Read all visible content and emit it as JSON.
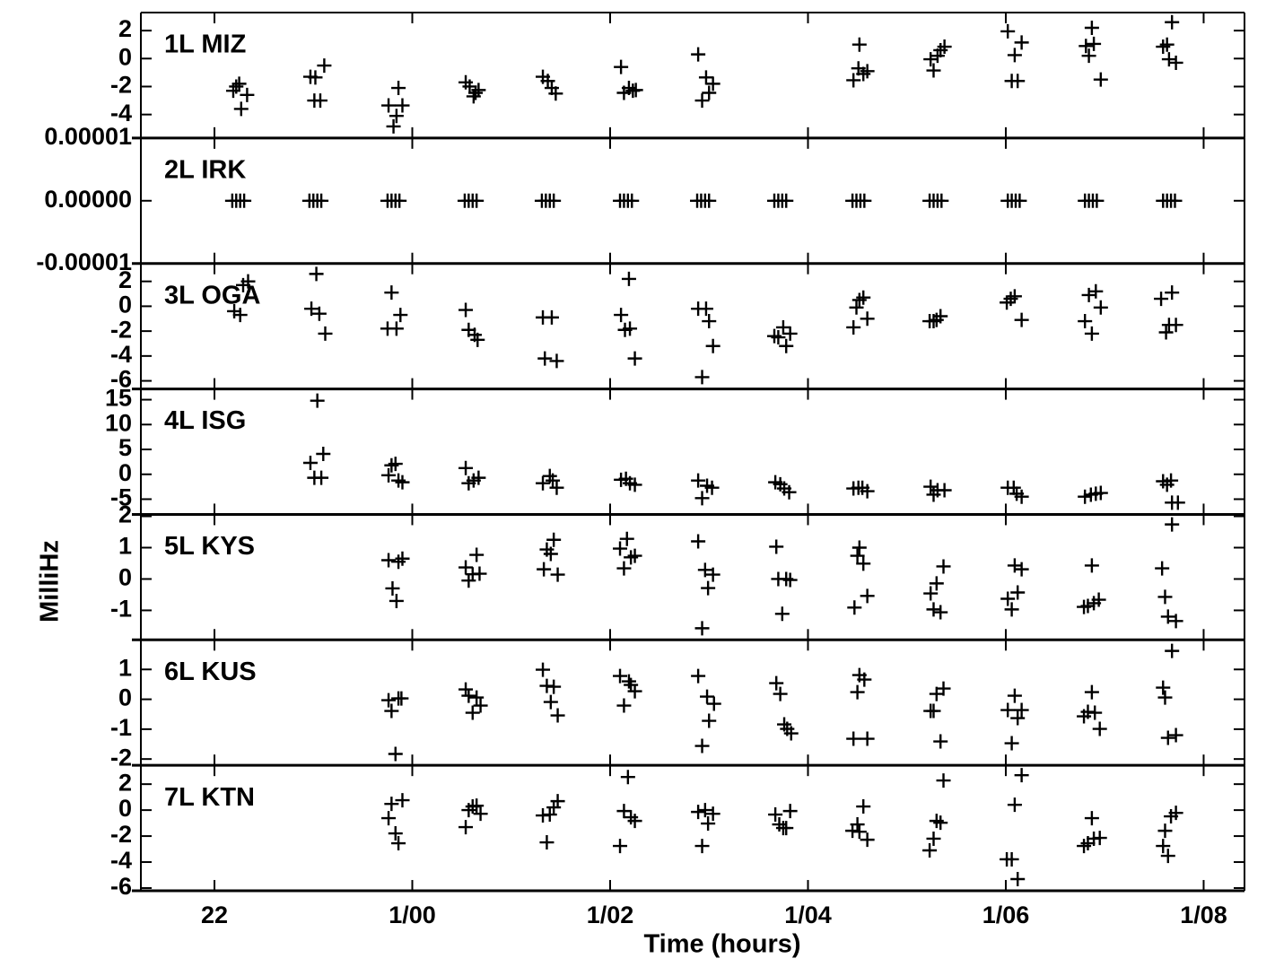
{
  "chart_data": [
    {
      "type": "scatter",
      "label": "1L MIZ",
      "color": "#000000",
      "x": [
        22.19,
        22.22,
        22.25,
        22.27,
        22.33,
        22.97,
        23.02,
        23.01,
        23.07,
        23.11,
        23.76,
        23.81,
        23.84,
        23.86,
        23.9,
        24.54,
        24.58,
        24.62,
        24.64,
        24.67,
        25.32,
        25.37,
        25.41,
        25.45,
        26.11,
        26.14,
        26.19,
        26.23,
        26.26,
        26.89,
        26.93,
        26.97,
        27.0,
        27.04,
        28.46,
        28.51,
        28.52,
        28.56,
        28.6,
        29.24,
        29.27,
        29.31,
        29.34,
        29.38,
        30.02,
        30.06,
        30.09,
        30.12,
        30.16,
        30.81,
        30.84,
        30.87,
        30.89,
        30.96,
        31.59,
        31.63,
        31.65,
        31.68,
        31.72
      ],
      "values": [
        -2.3,
        -2.0,
        -1.8,
        -3.6,
        -2.6,
        -1.3,
        -1.35,
        -3.0,
        -3.0,
        -0.5,
        -3.35,
        -4.85,
        -4.1,
        -2.1,
        -3.35,
        -1.7,
        -2.0,
        -2.7,
        -2.45,
        -2.25,
        -1.3,
        -1.6,
        -2.1,
        -2.5,
        -0.6,
        -2.45,
        -2.1,
        -2.3,
        -2.25,
        0.3,
        -3.0,
        -1.35,
        -2.45,
        -1.8,
        -1.55,
        -0.7,
        1.0,
        -1.1,
        -0.9,
        -0.05,
        -0.85,
        0.2,
        0.6,
        0.85,
        1.95,
        -1.6,
        0.25,
        -1.6,
        1.15,
        0.9,
        0.2,
        2.2,
        1.05,
        -1.5,
        0.85,
        1.0,
        -0.05,
        2.6,
        -0.3
      ],
      "ylim": [
        -5.68,
        3.29
      ],
      "yticks": [
        2,
        0,
        -2,
        -4
      ]
    },
    {
      "type": "scatter",
      "label": "2L IRK",
      "color": "#000000",
      "x": [
        22.18,
        22.22,
        22.26,
        22.3,
        22.96,
        23.0,
        23.04,
        23.08,
        23.75,
        23.79,
        23.83,
        23.87,
        24.53,
        24.57,
        24.61,
        24.65,
        25.31,
        25.35,
        25.39,
        25.43,
        26.1,
        26.14,
        26.18,
        26.22,
        26.88,
        26.92,
        26.96,
        27.0,
        27.66,
        27.7,
        27.74,
        27.78,
        28.45,
        28.49,
        28.53,
        28.57,
        29.23,
        29.27,
        29.31,
        29.35,
        30.02,
        30.06,
        30.1,
        30.14,
        30.8,
        30.84,
        30.88,
        30.92,
        31.59,
        31.63,
        31.67,
        31.71
      ],
      "values": [
        0,
        0,
        0,
        0,
        0,
        0,
        0,
        0,
        0,
        0,
        0,
        0,
        0,
        0,
        0,
        0,
        0,
        0,
        0,
        0,
        0,
        0,
        0,
        0,
        0,
        0,
        0,
        0,
        0,
        0,
        0,
        0,
        0,
        0,
        0,
        0,
        0,
        0,
        0,
        0,
        0,
        0,
        0,
        0,
        0,
        0,
        0,
        0,
        0,
        0,
        0,
        0
      ],
      "ylim": [
        -1e-05,
        1e-05
      ],
      "yticks": [
        1e-05,
        {
          "value": 0,
          "label": "0.00000"
        },
        -1e-05
      ]
    },
    {
      "type": "scatter",
      "label": "3L OGA",
      "color": "#000000",
      "x": [
        22.2,
        22.26,
        22.29,
        22.34,
        22.98,
        23.03,
        23.06,
        23.12,
        23.75,
        23.79,
        23.84,
        23.88,
        24.54,
        24.57,
        24.63,
        24.66,
        25.32,
        25.34,
        25.41,
        25.46,
        26.11,
        26.15,
        26.19,
        26.2,
        26.25,
        26.89,
        26.93,
        26.97,
        27.0,
        27.04,
        27.66,
        27.7,
        27.75,
        27.78,
        27.82,
        28.46,
        28.49,
        28.52,
        28.56,
        28.6,
        29.23,
        29.27,
        29.3,
        29.34,
        30.01,
        30.05,
        30.09,
        30.16,
        30.8,
        30.84,
        30.87,
        30.91,
        30.96,
        31.57,
        31.62,
        31.65,
        31.68,
        31.72
      ],
      "values": [
        -0.4,
        -0.7,
        1.7,
        2.0,
        -0.2,
        2.6,
        -0.6,
        -2.2,
        -1.8,
        1.1,
        -1.8,
        -0.7,
        -0.3,
        -1.9,
        -2.3,
        -2.7,
        -0.9,
        -4.2,
        -0.9,
        -4.4,
        -0.7,
        -1.9,
        2.2,
        -1.8,
        -4.2,
        -0.2,
        -5.7,
        -0.2,
        -1.2,
        -3.2,
        -2.4,
        -2.5,
        -1.7,
        -3.2,
        -2.2,
        -1.7,
        -0.1,
        0.5,
        0.7,
        -1.0,
        -1.2,
        -1.2,
        -1.1,
        -0.8,
        0.3,
        0.6,
        0.8,
        -1.1,
        -1.2,
        0.9,
        -2.2,
        1.2,
        -0.1,
        0.6,
        -2.1,
        -1.5,
        1.1,
        -1.5
      ],
      "ylim": [
        -6.65,
        3.44
      ],
      "yticks": [
        2,
        0,
        -2,
        -4,
        -6
      ]
    },
    {
      "type": "scatter",
      "label": "4L ISG",
      "color": "#000000",
      "x": [
        22.97,
        23.01,
        23.04,
        23.08,
        23.1,
        23.76,
        23.79,
        23.83,
        23.86,
        23.9,
        24.54,
        24.57,
        24.62,
        24.67,
        25.32,
        25.39,
        25.42,
        25.46,
        26.11,
        26.16,
        26.2,
        26.25,
        26.89,
        26.93,
        26.98,
        27.03,
        27.67,
        27.72,
        27.76,
        27.81,
        28.46,
        28.51,
        28.55,
        28.6,
        29.24,
        29.27,
        29.31,
        29.38,
        30.02,
        30.08,
        30.11,
        30.16,
        30.8,
        30.86,
        30.91,
        30.96,
        31.59,
        31.63,
        31.67,
        31.68,
        31.74
      ],
      "values": [
        2.3,
        -0.7,
        14.8,
        -0.7,
        4.1,
        -0.2,
        1.8,
        2.1,
        -1.25,
        -1.6,
        1.25,
        -1.8,
        -1.25,
        -0.7,
        -1.8,
        -0.35,
        -1.25,
        -2.7,
        -1.1,
        -0.9,
        -1.8,
        -2.1,
        -1.25,
        -4.8,
        -2.3,
        -2.7,
        -1.6,
        -2.0,
        -2.85,
        -3.6,
        -2.85,
        -2.7,
        -2.7,
        -3.4,
        -2.5,
        -4.1,
        -3.2,
        -3.2,
        -2.7,
        -2.7,
        -3.9,
        -4.5,
        -4.5,
        -4.1,
        -3.9,
        -3.75,
        -1.4,
        -2.1,
        -1.25,
        -5.7,
        -5.7
      ],
      "ylim": [
        -8.06,
        17.16
      ],
      "yticks": [
        15,
        10,
        5,
        0,
        -5
      ]
    },
    {
      "type": "scatter",
      "label": "5L KYS",
      "color": "#000000",
      "ylabel": "MilliHz",
      "x": [
        23.76,
        23.8,
        23.84,
        23.86,
        23.9,
        24.54,
        24.57,
        24.61,
        24.65,
        24.68,
        25.33,
        25.36,
        25.4,
        25.43,
        25.47,
        26.1,
        26.14,
        26.17,
        26.21,
        26.25,
        26.89,
        26.93,
        26.96,
        26.99,
        27.04,
        27.68,
        27.7,
        27.74,
        27.78,
        27.82,
        28.47,
        28.5,
        28.52,
        28.56,
        28.6,
        29.24,
        29.27,
        29.3,
        29.34,
        29.37,
        30.02,
        30.06,
        30.09,
        30.12,
        30.16,
        30.79,
        30.83,
        30.87,
        30.89,
        30.94,
        31.58,
        31.61,
        31.64,
        31.68,
        31.72
      ],
      "values": [
        0.6,
        -0.3,
        -0.7,
        0.55,
        0.65,
        0.37,
        -0.05,
        0.15,
        0.77,
        0.17,
        0.31,
        0.94,
        0.8,
        1.25,
        0.14,
        0.97,
        0.34,
        1.28,
        0.69,
        0.74,
        1.2,
        -1.57,
        0.29,
        -0.29,
        0.14,
        1.03,
        0,
        -1.11,
        0,
        -0.03,
        -0.91,
        0.74,
        1.0,
        0.49,
        -0.54,
        -0.46,
        -0.97,
        -0.14,
        -1.06,
        0.4,
        -0.63,
        -0.97,
        0.43,
        -0.43,
        0.31,
        -0.89,
        -0.86,
        0.43,
        -0.77,
        -0.66,
        0.34,
        -0.57,
        -1.2,
        1.74,
        -1.34
      ],
      "ylim": [
        -1.94,
        2.06
      ],
      "yticks": [
        2,
        1,
        0,
        -1
      ]
    },
    {
      "type": "scatter",
      "label": "6L KUS",
      "color": "#000000",
      "x": [
        23.76,
        23.79,
        23.83,
        23.86,
        23.89,
        24.54,
        24.57,
        24.61,
        24.65,
        24.69,
        25.32,
        25.36,
        25.4,
        25.43,
        25.47,
        26.1,
        26.14,
        26.19,
        26.21,
        26.25,
        26.89,
        26.93,
        26.98,
        27.0,
        27.05,
        27.68,
        27.72,
        27.76,
        27.79,
        27.83,
        28.46,
        28.5,
        28.52,
        28.57,
        28.6,
        29.24,
        29.27,
        29.3,
        29.34,
        29.37,
        30.02,
        30.06,
        30.09,
        30.12,
        30.16,
        30.79,
        30.83,
        30.87,
        30.9,
        30.95,
        31.59,
        31.61,
        31.64,
        31.68,
        31.72
      ],
      "values": [
        -0.03,
        -0.39,
        -1.83,
        0.03,
        0.03,
        0.33,
        0.12,
        -0.45,
        0.06,
        -0.21,
        0.99,
        0.45,
        -0.09,
        0.42,
        -0.54,
        0.78,
        -0.21,
        0.6,
        0.48,
        0.27,
        0.78,
        -1.56,
        0.09,
        -0.72,
        -0.15,
        0.54,
        0.18,
        -0.84,
        -0.99,
        -1.14,
        -1.32,
        0.24,
        0.81,
        0.66,
        -1.32,
        -0.39,
        -0.39,
        0.18,
        -1.41,
        0.36,
        -0.36,
        -1.47,
        0.12,
        -0.63,
        -0.36,
        -0.57,
        -0.42,
        0.24,
        -0.45,
        -0.99,
        0.39,
        0.06,
        -1.29,
        1.62,
        -1.2
      ],
      "ylim": [
        -2.21,
        1.99
      ],
      "yticks": [
        1,
        0,
        -1,
        -2
      ]
    },
    {
      "type": "scatter",
      "label": "7L KTN",
      "color": "#000000",
      "xlabel": "Time (hours)",
      "x": [
        23.76,
        23.79,
        23.83,
        23.86,
        23.9,
        24.54,
        24.57,
        24.61,
        24.65,
        24.69,
        25.32,
        25.36,
        25.39,
        25.43,
        25.47,
        26.1,
        26.14,
        26.18,
        26.21,
        26.25,
        26.89,
        26.93,
        26.96,
        26.99,
        27.04,
        27.67,
        27.71,
        27.75,
        27.78,
        27.82,
        28.45,
        28.5,
        28.52,
        28.56,
        28.6,
        29.23,
        29.27,
        29.3,
        29.34,
        29.37,
        30.01,
        30.06,
        30.09,
        30.12,
        30.16,
        30.79,
        30.83,
        30.87,
        30.89,
        30.95,
        31.59,
        31.61,
        31.64,
        31.67,
        31.72
      ],
      "values": [
        -0.62,
        0.48,
        -1.79,
        -2.55,
        0.76,
        -1.31,
        0,
        0.28,
        0.34,
        -0.28,
        -0.41,
        -2.48,
        -0.34,
        0.21,
        0.69,
        -2.76,
        -0.07,
        2.55,
        -0.55,
        -0.83,
        -0.14,
        -2.76,
        0,
        -1.03,
        -0.28,
        -0.34,
        -1.1,
        -1.38,
        -1.38,
        -0.07,
        -1.59,
        -1.1,
        -1.66,
        0.28,
        -2.28,
        -3.1,
        -2.2,
        -0.83,
        -0.97,
        2.28,
        -3.79,
        -3.79,
        0.41,
        -5.31,
        2.69,
        -2.76,
        -2.55,
        -0.62,
        -2.2,
        -2.14,
        -2.76,
        -1.59,
        -3.52,
        -0.48,
        -0.21
      ],
      "ylim": [
        -6.21,
        3.45
      ],
      "yticks": [
        2,
        0,
        -2,
        -4,
        -6
      ],
      "xlim": [
        21.256,
        32.413
      ],
      "xticks": [
        22,
        {
          "value": 24,
          "label": "1/00"
        },
        {
          "value": 26,
          "label": "1/02"
        },
        {
          "value": 28,
          "label": "1/04"
        },
        {
          "value": 30,
          "label": "1/06"
        },
        {
          "value": 32,
          "label": "1/08"
        }
      ]
    }
  ]
}
